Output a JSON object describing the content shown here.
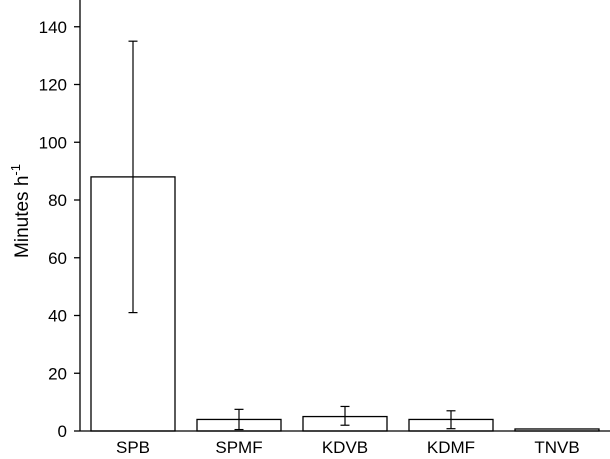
{
  "chart_data": {
    "type": "bar",
    "title": "",
    "xlabel": "",
    "ylabel": "Minutes h",
    "ylabel_superscript": "-1",
    "ylim": [
      0,
      150
    ],
    "yticks": [
      0,
      20,
      40,
      60,
      80,
      100,
      120,
      140
    ],
    "categories": [
      "SPB",
      "SPMF",
      "KDVB",
      "KDMF",
      "TNVB"
    ],
    "values": [
      88,
      4,
      5,
      4,
      0.7
    ],
    "error_low": [
      41,
      0.5,
      2,
      0.8,
      null
    ],
    "error_high": [
      135,
      7.5,
      8.5,
      7,
      null
    ],
    "grid": false,
    "bar_fill": "#ffffff",
    "bar_stroke": "#000000"
  }
}
